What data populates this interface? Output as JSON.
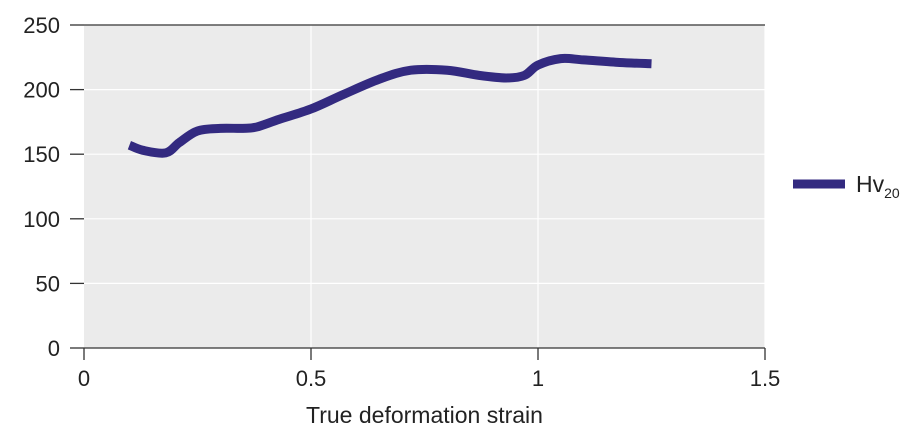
{
  "chart_data": {
    "type": "line",
    "title": "",
    "xlabel": "True deformation strain",
    "ylabel": "",
    "xlim": [
      0,
      1.5
    ],
    "ylim": [
      0,
      250
    ],
    "x_ticks": [
      0,
      0.5,
      1,
      1.5
    ],
    "x_tick_labels": [
      "0",
      "0.5",
      "1",
      "1.5"
    ],
    "y_ticks": [
      0,
      50,
      100,
      150,
      200,
      250
    ],
    "y_tick_labels": [
      "0",
      "50",
      "100",
      "150",
      "200",
      "250"
    ],
    "grid": true,
    "legend_position": "right",
    "colors": {
      "series": "#332a80",
      "plot_background": "#ebebeb",
      "grid": "#ffffff",
      "axis": "#333333"
    },
    "series": [
      {
        "name": "Hv",
        "name_subscript": "20",
        "x": [
          0.1,
          0.13,
          0.18,
          0.21,
          0.25,
          0.3,
          0.35,
          0.38,
          0.43,
          0.5,
          0.57,
          0.65,
          0.72,
          0.8,
          0.87,
          0.93,
          0.97,
          1.0,
          1.05,
          1.1,
          1.18,
          1.25
        ],
        "y": [
          157,
          153,
          151,
          159,
          168,
          170,
          170,
          171,
          177,
          185,
          196,
          208,
          215,
          215,
          211,
          209,
          211,
          219,
          224,
          223,
          221,
          220
        ]
      }
    ]
  }
}
